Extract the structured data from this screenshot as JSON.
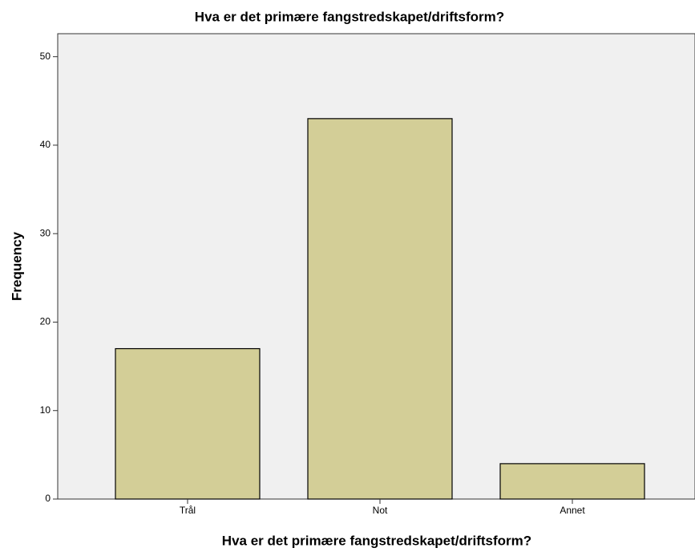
{
  "chart_data": {
    "type": "bar",
    "title": "Hva er det primære fangstredskapet/driftsform?",
    "xlabel": "Hva er det primære fangstredskapet/driftsform?",
    "ylabel": "Frequency",
    "categories": [
      "Trål",
      "Not",
      "Annet"
    ],
    "values": [
      17,
      43,
      4
    ],
    "color": "#d3ce97",
    "ylim": [
      0,
      52.6
    ],
    "yticks": [
      0,
      10,
      20,
      30,
      40,
      50
    ],
    "grid": false
  }
}
